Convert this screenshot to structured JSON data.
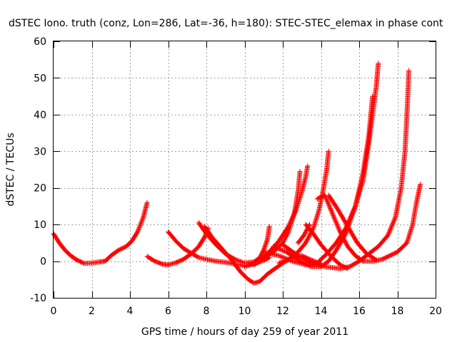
{
  "chart_data": {
    "type": "scatter",
    "title": "dSTEC Iono. truth (conz, Lon=286, Lat=-36, h=180): STEC-STEC_elemax in phase cont",
    "xlabel": "GPS time / hours of day 259 of year 2011",
    "ylabel": "dSTEC  / TECUs",
    "xlim": [
      0,
      20
    ],
    "ylim": [
      -10,
      60
    ],
    "xticks": [
      0,
      2,
      4,
      6,
      8,
      10,
      12,
      14,
      16,
      18,
      20
    ],
    "yticks": [
      -10,
      0,
      10,
      20,
      30,
      40,
      50,
      60
    ],
    "grid": true,
    "marker": "+",
    "marker_color": "#ff0000",
    "series": [
      {
        "points": [
          [
            0.0,
            7.5
          ],
          [
            0.3,
            5.0
          ],
          [
            0.6,
            3.0
          ],
          [
            0.9,
            1.5
          ],
          [
            1.2,
            0.4
          ],
          [
            1.6,
            -0.6
          ],
          [
            2.0,
            -0.5
          ],
          [
            2.4,
            -0.2
          ],
          [
            2.7,
            0.0
          ],
          [
            3.0,
            1.5
          ],
          [
            3.4,
            3.0
          ],
          [
            3.8,
            4.0
          ],
          [
            4.1,
            5.5
          ],
          [
            4.4,
            8.0
          ],
          [
            4.7,
            12.0
          ],
          [
            4.9,
            16.0
          ]
        ]
      },
      {
        "points": [
          [
            4.9,
            1.3
          ],
          [
            5.3,
            0.0
          ],
          [
            5.7,
            -0.8
          ],
          [
            6.0,
            -1.0
          ],
          [
            6.4,
            -0.4
          ],
          [
            6.8,
            0.5
          ],
          [
            7.2,
            2.0
          ],
          [
            7.6,
            4.0
          ],
          [
            7.9,
            6.5
          ],
          [
            8.1,
            9.0
          ]
        ]
      },
      {
        "points": [
          [
            6.0,
            8.0
          ],
          [
            6.4,
            5.5
          ],
          [
            6.8,
            3.5
          ],
          [
            7.2,
            2.2
          ],
          [
            7.6,
            1.0
          ],
          [
            8.0,
            0.5
          ],
          [
            8.5,
            0.0
          ],
          [
            9.0,
            -0.3
          ],
          [
            9.5,
            -0.8
          ],
          [
            10.0,
            -1.2
          ],
          [
            10.5,
            -0.8
          ],
          [
            11.0,
            0.2
          ],
          [
            11.3,
            1.0
          ]
        ]
      },
      {
        "points": [
          [
            7.6,
            10.5
          ],
          [
            8.0,
            7.5
          ],
          [
            8.5,
            4.5
          ],
          [
            9.0,
            2.0
          ],
          [
            9.5,
            0.5
          ],
          [
            10.0,
            -0.5
          ],
          [
            10.5,
            -0.2
          ],
          [
            10.8,
            1.0
          ],
          [
            11.0,
            3.0
          ],
          [
            11.2,
            6.0
          ],
          [
            11.3,
            9.5
          ]
        ]
      },
      {
        "points": [
          [
            7.9,
            9.5
          ],
          [
            8.3,
            6.5
          ],
          [
            8.8,
            3.5
          ],
          [
            9.3,
            0.5
          ],
          [
            9.8,
            -3.0
          ],
          [
            10.2,
            -5.0
          ],
          [
            10.5,
            -6.0
          ],
          [
            10.8,
            -5.5
          ],
          [
            11.2,
            -3.5
          ],
          [
            11.6,
            -2.0
          ],
          [
            12.0,
            -0.5
          ],
          [
            12.5,
            1.0
          ],
          [
            13.0,
            1.5
          ],
          [
            13.5,
            0.3
          ],
          [
            14.0,
            -0.8
          ]
        ]
      },
      {
        "points": [
          [
            10.0,
            -1.5
          ],
          [
            10.8,
            0.0
          ],
          [
            11.5,
            2.5
          ],
          [
            12.0,
            5.0
          ],
          [
            12.3,
            8.0
          ],
          [
            12.6,
            13.0
          ],
          [
            12.8,
            19.0
          ],
          [
            12.9,
            24.5
          ]
        ]
      },
      {
        "points": [
          [
            10.5,
            -1.0
          ],
          [
            11.2,
            2.0
          ],
          [
            11.8,
            5.5
          ],
          [
            12.3,
            9.5
          ],
          [
            12.7,
            14.0
          ],
          [
            13.0,
            19.0
          ],
          [
            13.2,
            23.0
          ],
          [
            13.3,
            26.0
          ]
        ]
      },
      {
        "points": [
          [
            11.0,
            2.5
          ],
          [
            11.8,
            1.5
          ],
          [
            12.5,
            0.0
          ],
          [
            13.2,
            -1.0
          ],
          [
            13.8,
            -0.5
          ],
          [
            14.3,
            2.0
          ],
          [
            14.8,
            5.0
          ],
          [
            15.3,
            9.0
          ],
          [
            15.8,
            15.0
          ],
          [
            16.2,
            22.0
          ],
          [
            16.5,
            32.0
          ],
          [
            16.7,
            40.0
          ],
          [
            16.9,
            48.0
          ],
          [
            17.0,
            54.0
          ]
        ]
      },
      {
        "points": [
          [
            11.5,
            4.0
          ],
          [
            12.2,
            2.5
          ],
          [
            12.9,
            0.0
          ],
          [
            13.5,
            -1.5
          ],
          [
            14.0,
            -1.5
          ],
          [
            14.4,
            0.0
          ],
          [
            14.8,
            3.0
          ],
          [
            15.3,
            7.5
          ],
          [
            15.8,
            15.0
          ],
          [
            16.2,
            24.0
          ],
          [
            16.5,
            34.0
          ],
          [
            16.7,
            45.0
          ]
        ]
      },
      {
        "points": [
          [
            11.8,
            -0.5
          ],
          [
            12.3,
            0.5
          ],
          [
            12.8,
            2.5
          ],
          [
            13.2,
            5.0
          ],
          [
            13.6,
            9.0
          ],
          [
            13.9,
            14.0
          ],
          [
            14.1,
            19.0
          ],
          [
            14.3,
            25.0
          ],
          [
            14.4,
            30.0
          ]
        ]
      },
      {
        "points": [
          [
            12.0,
            4.5
          ],
          [
            12.8,
            1.5
          ],
          [
            13.5,
            -0.5
          ],
          [
            14.2,
            -1.5
          ],
          [
            15.0,
            -2.0
          ],
          [
            15.5,
            -1.5
          ],
          [
            16.0,
            0.0
          ],
          [
            16.5,
            2.0
          ],
          [
            17.0,
            4.0
          ],
          [
            17.5,
            7.0
          ],
          [
            17.9,
            12.0
          ],
          [
            18.2,
            20.0
          ],
          [
            18.4,
            30.0
          ],
          [
            18.5,
            40.0
          ],
          [
            18.6,
            52.0
          ]
        ]
      },
      {
        "points": [
          [
            12.8,
            5.0
          ],
          [
            13.1,
            7.0
          ],
          [
            13.4,
            10.0
          ]
        ]
      },
      {
        "points": [
          [
            13.2,
            10.0
          ],
          [
            13.6,
            7.5
          ],
          [
            14.0,
            4.5
          ],
          [
            14.5,
            1.5
          ],
          [
            15.0,
            -1.0
          ],
          [
            15.4,
            -2.0
          ]
        ]
      },
      {
        "points": [
          [
            13.8,
            17.0
          ],
          [
            14.2,
            18.0
          ],
          [
            14.6,
            13.0
          ],
          [
            15.0,
            8.0
          ],
          [
            15.4,
            4.0
          ],
          [
            15.8,
            1.5
          ],
          [
            16.2,
            0.0
          ],
          [
            16.7,
            0.0
          ],
          [
            17.2,
            0.5
          ],
          [
            17.6,
            1.5
          ],
          [
            18.0,
            2.5
          ],
          [
            18.5,
            5.0
          ],
          [
            18.8,
            10.0
          ],
          [
            19.0,
            16.0
          ],
          [
            19.2,
            21.0
          ]
        ]
      },
      {
        "points": [
          [
            14.4,
            18.0
          ],
          [
            14.9,
            14.0
          ],
          [
            15.4,
            9.5
          ],
          [
            15.9,
            5.0
          ],
          [
            16.4,
            2.0
          ],
          [
            16.9,
            0.3
          ]
        ]
      }
    ]
  }
}
